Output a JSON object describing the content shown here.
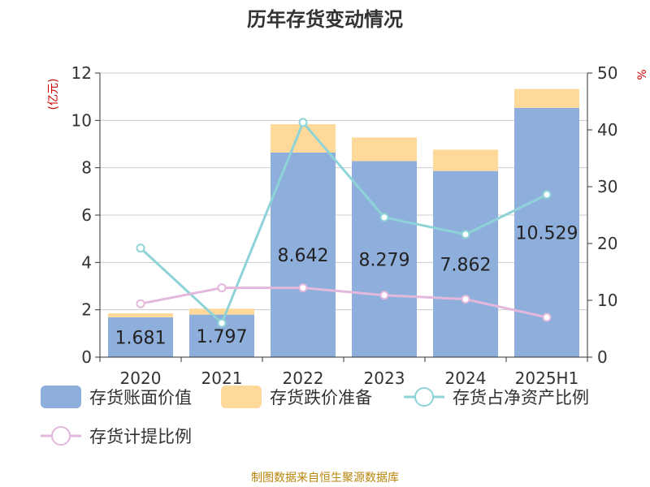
{
  "title": "历年存货变动情况",
  "source": "制图数据来自恒生聚源数据库",
  "colors": {
    "book_value": "#8eaedb",
    "impairment": "#ffd99a",
    "ratio_net_assets": "#8dd3d7",
    "provision_ratio": "#e3b8dc",
    "axis": "#333333",
    "grid": "#cccccc",
    "unit": "#cc0000",
    "source": "#b8860b"
  },
  "chart_data": {
    "type": "bar",
    "title": "历年存货变动情况",
    "categories": [
      "2020",
      "2021",
      "2022",
      "2023",
      "2024",
      "2025H1"
    ],
    "y_left": {
      "unit": "(亿元)",
      "ylim": [
        0,
        12
      ],
      "ticks": [
        0,
        2,
        4,
        6,
        8,
        10,
        12
      ]
    },
    "y_right": {
      "unit": "%",
      "ylim": [
        0,
        50
      ],
      "ticks": [
        0,
        10,
        20,
        30,
        40,
        50
      ]
    },
    "grid": true,
    "legend_position": "bottom",
    "series": [
      {
        "name": "存货账面价值",
        "kind": "bar",
        "stack": "inv",
        "axis": "left",
        "values": [
          1.681,
          1.797,
          8.642,
          8.279,
          7.862,
          10.529
        ],
        "labels": [
          "1.681",
          "1.797",
          "8.642",
          "8.279",
          "7.862",
          "10.529"
        ]
      },
      {
        "name": "存货跌价准备",
        "kind": "bar",
        "stack": "inv",
        "axis": "left",
        "values": [
          0.17,
          0.25,
          1.2,
          1.0,
          0.9,
          0.8
        ]
      },
      {
        "name": "存货占净资产比例",
        "kind": "line",
        "axis": "right",
        "values": [
          19.2,
          6.0,
          41.3,
          24.6,
          21.6,
          28.6
        ]
      },
      {
        "name": "存货计提比例",
        "kind": "line",
        "axis": "right",
        "values": [
          9.4,
          12.2,
          12.2,
          10.9,
          10.2,
          7.0
        ]
      }
    ]
  }
}
